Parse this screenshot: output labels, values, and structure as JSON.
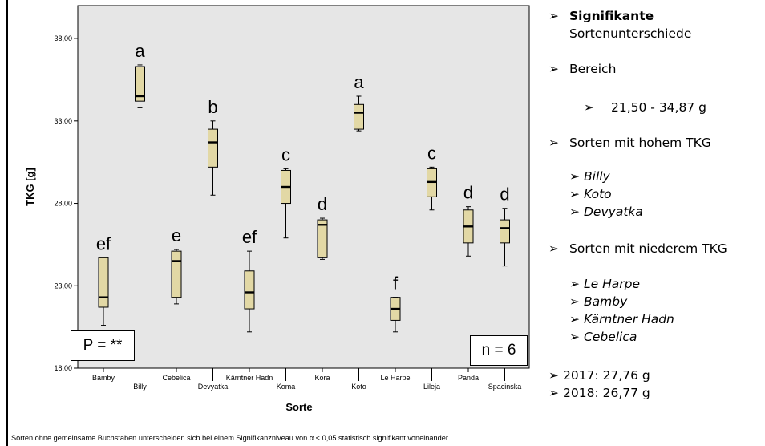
{
  "chart_data": {
    "type": "boxplot",
    "xlabel": "Sorte",
    "ylabel": "TKG [g]",
    "ylim": [
      18,
      40
    ],
    "yticks": [
      18,
      23,
      28,
      33,
      38
    ],
    "ytick_labels": [
      "18,00",
      "23,00",
      "28,00",
      "33,00",
      "38,00"
    ],
    "grid": false,
    "background": "#e6e6e6",
    "box_color": "#e2d8a5",
    "categories": [
      "Bamby",
      "Billy",
      "Cebelica",
      "Devyatka",
      "Kärntner Hadn",
      "Koma",
      "Kora",
      "Koto",
      "Le Harpe",
      "Lileja",
      "Panda",
      "Spacinska"
    ],
    "boxes": [
      {
        "name": "Bamby",
        "min": 20.6,
        "q1": 21.7,
        "median": 22.3,
        "q3": 24.7,
        "max": 24.7,
        "group": "ef"
      },
      {
        "name": "Billy",
        "min": 33.8,
        "q1": 34.2,
        "median": 34.5,
        "q3": 36.3,
        "max": 36.4,
        "group": "a"
      },
      {
        "name": "Cebelica",
        "min": 21.9,
        "q1": 22.3,
        "median": 24.5,
        "q3": 25.1,
        "max": 25.2,
        "group": "e"
      },
      {
        "name": "Devyatka",
        "min": 28.5,
        "q1": 30.2,
        "median": 31.7,
        "q3": 32.5,
        "max": 33.0,
        "group": "b"
      },
      {
        "name": "Kärntner Hadn",
        "min": 20.2,
        "q1": 21.6,
        "median": 22.6,
        "q3": 23.9,
        "max": 25.1,
        "group": "ef"
      },
      {
        "name": "Koma",
        "min": 25.9,
        "q1": 28.0,
        "median": 29.0,
        "q3": 30.0,
        "max": 30.1,
        "group": "c"
      },
      {
        "name": "Kora",
        "min": 24.6,
        "q1": 24.7,
        "median": 26.7,
        "q3": 27.0,
        "max": 27.1,
        "group": "d"
      },
      {
        "name": "Koto",
        "min": 32.4,
        "q1": 32.5,
        "median": 33.5,
        "q3": 34.0,
        "max": 34.5,
        "group": "a"
      },
      {
        "name": "Le Harpe",
        "min": 20.2,
        "q1": 20.9,
        "median": 21.6,
        "q3": 22.3,
        "max": 22.3,
        "group": "f"
      },
      {
        "name": "Lileja",
        "min": 27.6,
        "q1": 28.4,
        "median": 29.3,
        "q3": 30.1,
        "max": 30.2,
        "group": "c"
      },
      {
        "name": "Panda",
        "min": 24.8,
        "q1": 25.6,
        "median": 26.6,
        "q3": 27.6,
        "max": 27.8,
        "group": "d"
      },
      {
        "name": "Spacinska",
        "min": 24.2,
        "q1": 25.6,
        "median": 26.5,
        "q3": 27.0,
        "max": 27.7,
        "group": "d"
      }
    ],
    "annotations": {
      "p_value": "P = **",
      "n": "n = 6"
    }
  },
  "notes": {
    "items": [
      {
        "bold": "Signifikante",
        "text": "Sortenunterschiede"
      },
      {
        "text": "Bereich"
      },
      {
        "text": "21,50 -  34,87 g"
      },
      {
        "text": "Sorten mit hohem TKG"
      },
      {
        "text": "Billy"
      },
      {
        "text": "Koto"
      },
      {
        "text": "Devyatka"
      },
      {
        "text": "Sorten mit niederem TKG"
      },
      {
        "text": "Le Harpe"
      },
      {
        "text": "Bamby"
      },
      {
        "text": "Kärntner Hadn"
      },
      {
        "text": "Cebelica"
      },
      {
        "text": "2017:    27,76 g"
      },
      {
        "text": "2018:    26,77 g"
      }
    ]
  },
  "footnote": "Sorten ohne gemeinsame Buchstaben unterscheiden sich bei einem Signifikanzniveau von α < 0,05 statistisch signifikant voneinander"
}
